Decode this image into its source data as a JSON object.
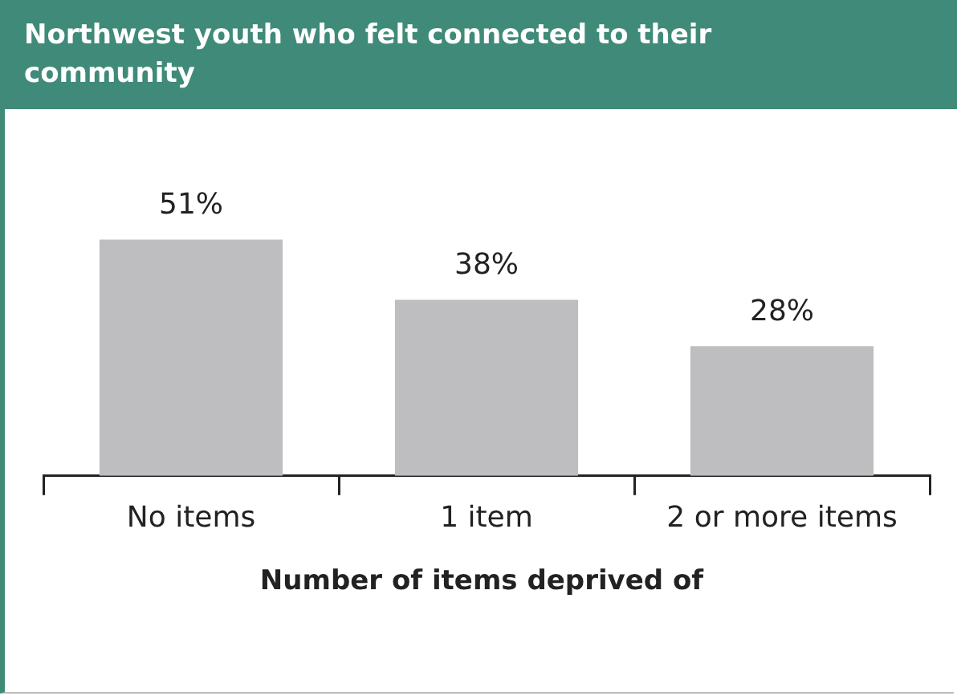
{
  "chart_data": {
    "type": "bar",
    "title": "Northwest youth who felt connected to their community",
    "xlabel": "Number of items deprived of",
    "categories": [
      "No items",
      "1 item",
      "2 or more items"
    ],
    "values": [
      51,
      38,
      28
    ],
    "color": "#bebec1",
    "data_labels": true,
    "value_labels": [
      "51%",
      "38%",
      "28%"
    ],
    "grid": false,
    "legend": false
  }
}
